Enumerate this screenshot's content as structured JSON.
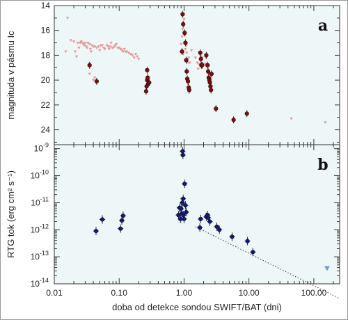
{
  "chart_data": [
    {
      "id": "a",
      "type": "scatter",
      "panel_label": "a",
      "ylabel": "magnituda v pásmu Ic",
      "xscale": "log",
      "yinverted": true,
      "xlim": [
        0.01,
        250
      ],
      "ylim": [
        25.2,
        14.0
      ],
      "yticks": [
        14,
        16,
        18,
        20,
        22,
        24
      ],
      "yticklabels": [
        "14",
        "16",
        "18",
        "20",
        "22",
        "24"
      ],
      "background": "#eef7f7",
      "series": [
        {
          "role": "limits",
          "marker": "triangle-down",
          "color": "#e79a9a",
          "points": [
            [
              0.015,
              17.7
            ],
            [
              0.016,
              15.0
            ],
            [
              0.018,
              16.8
            ],
            [
              0.02,
              16.9
            ],
            [
              0.021,
              17.7
            ],
            [
              0.022,
              18.1
            ],
            [
              0.023,
              17.0
            ],
            [
              0.024,
              17.4
            ],
            [
              0.025,
              17.0
            ],
            [
              0.026,
              16.9
            ],
            [
              0.027,
              17.0
            ],
            [
              0.028,
              17.1
            ],
            [
              0.029,
              17.2
            ],
            [
              0.03,
              17.0
            ],
            [
              0.031,
              17.3
            ],
            [
              0.032,
              17.4
            ],
            [
              0.033,
              17.0
            ],
            [
              0.035,
              17.1
            ],
            [
              0.036,
              17.5
            ],
            [
              0.037,
              17.7
            ],
            [
              0.038,
              17.2
            ],
            [
              0.04,
              17.3
            ],
            [
              0.042,
              17.3
            ],
            [
              0.045,
              17.4
            ],
            [
              0.048,
              17.3
            ],
            [
              0.05,
              17.6
            ],
            [
              0.052,
              17.2
            ],
            [
              0.055,
              17.2
            ],
            [
              0.058,
              17.4
            ],
            [
              0.06,
              17.5
            ],
            [
              0.065,
              17.2
            ],
            [
              0.068,
              17.3
            ],
            [
              0.07,
              17.5
            ],
            [
              0.072,
              17.3
            ],
            [
              0.075,
              17.0
            ],
            [
              0.078,
              17.4
            ],
            [
              0.08,
              17.4
            ],
            [
              0.085,
              17.3
            ],
            [
              0.088,
              17.2
            ],
            [
              0.09,
              17.1
            ],
            [
              0.095,
              17.4
            ],
            [
              0.1,
              17.4
            ],
            [
              0.105,
              17.5
            ],
            [
              0.11,
              17.6
            ],
            [
              0.115,
              17.7
            ],
            [
              0.12,
              17.5
            ],
            [
              0.125,
              17.7
            ],
            [
              0.13,
              17.7
            ],
            [
              0.14,
              17.8
            ],
            [
              0.15,
              17.9
            ],
            [
              0.16,
              18.0
            ],
            [
              0.17,
              18.2
            ],
            [
              0.18,
              17.9
            ],
            [
              0.19,
              18.1
            ],
            [
              0.2,
              18.3
            ],
            [
              0.035,
              19.5
            ],
            [
              0.04,
              20.0
            ],
            [
              0.042,
              19.8
            ],
            [
              0.9,
              17.1
            ],
            [
              0.93,
              16.5
            ],
            [
              0.95,
              15.9
            ],
            [
              0.97,
              17.9
            ],
            [
              1.0,
              15.1
            ],
            [
              1.03,
              16.4
            ],
            [
              1.05,
              17.5
            ],
            [
              1.08,
              17.2
            ],
            [
              1.1,
              17.8
            ],
            [
              1.12,
              18.3
            ],
            [
              1.15,
              18.6
            ],
            [
              1.18,
              18.2
            ],
            [
              1.22,
              18.6
            ],
            [
              1.3,
              17.6
            ],
            [
              1.5,
              18.2
            ],
            [
              1.6,
              18.6
            ],
            [
              1.65,
              19.1
            ],
            [
              1.7,
              18.7
            ],
            [
              1.8,
              18.1
            ],
            [
              1.9,
              18.2
            ],
            [
              2.0,
              18.7
            ],
            [
              2.1,
              18.7
            ],
            [
              2.2,
              18.2
            ],
            [
              2.35,
              18.8
            ],
            [
              2.45,
              19.5
            ],
            [
              2.5,
              19.5
            ],
            [
              2.6,
              19.9
            ],
            [
              2.7,
              20.5
            ],
            [
              45,
              23.1
            ],
            [
              150,
              23.4
            ]
          ]
        },
        {
          "role": "detections",
          "marker": "circle",
          "color": "#7a0f0f",
          "points": [
            [
              0.035,
              18.8
            ],
            [
              0.045,
              20.1
            ],
            [
              0.27,
              19.2
            ],
            [
              0.27,
              20.0
            ],
            [
              0.265,
              20.5
            ],
            [
              0.26,
              20.9
            ],
            [
              0.275,
              19.8
            ],
            [
              0.28,
              20.3
            ],
            [
              0.29,
              20.2
            ],
            [
              0.95,
              14.7
            ],
            [
              0.97,
              15.5
            ],
            [
              1.02,
              16.2
            ],
            [
              1.05,
              17.0
            ],
            [
              1.08,
              18.4
            ],
            [
              1.1,
              19.3
            ],
            [
              1.12,
              19.9
            ],
            [
              0.93,
              17.7
            ],
            [
              1.15,
              20.1
            ],
            [
              1.18,
              20.6
            ],
            [
              1.2,
              20.8
            ],
            [
              1.78,
              17.8
            ],
            [
              1.82,
              18.3
            ],
            [
              1.85,
              18.8
            ],
            [
              1.9,
              18.8
            ],
            [
              2.2,
              18.0
            ],
            [
              2.3,
              18.8
            ],
            [
              2.35,
              19.3
            ],
            [
              2.4,
              19.8
            ],
            [
              2.45,
              20.0
            ],
            [
              2.5,
              20.2
            ],
            [
              2.55,
              20.5
            ],
            [
              2.6,
              20.8
            ],
            [
              2.65,
              19.5
            ],
            [
              3.1,
              22.3
            ],
            [
              5.8,
              23.2
            ],
            [
              9.3,
              22.7
            ]
          ]
        }
      ]
    },
    {
      "id": "b",
      "type": "scatter",
      "panel_label": "b",
      "ylabel": "RTG tok (erg cm² s⁻¹)",
      "xlabel": "doba od detekce sondou SWIFT/BAT (dni)",
      "xscale": "log",
      "yscale": "log",
      "xlim": [
        0.01,
        250
      ],
      "ylim": [
        1e-14,
        1.4e-09
      ],
      "xticks": [
        0.01,
        0.1,
        1,
        10,
        100
      ],
      "xticklabels": [
        "0.01",
        "0.10",
        "1.00",
        "10.00",
        "100.00"
      ],
      "ytick_exponents": [
        -9,
        -10,
        -11,
        -12,
        -13,
        -14
      ],
      "ytick_base": "10",
      "background": "#eef7f7",
      "series": [
        {
          "role": "xray",
          "marker": "circle",
          "color": "#121a78",
          "points": [
            [
              0.044,
              9e-13
            ],
            [
              0.055,
              2.4e-12
            ],
            [
              0.105,
              1.1e-12
            ],
            [
              0.11,
              2.2e-12
            ],
            [
              0.115,
              3.3e-12
            ],
            [
              0.82,
              3.5e-12
            ],
            [
              0.85,
              6.5e-12
            ],
            [
              0.88,
              2.5e-12
            ],
            [
              0.9,
              6e-12
            ],
            [
              0.92,
              4e-12
            ],
            [
              0.94,
              1e-11
            ],
            [
              0.95,
              8e-10
            ],
            [
              0.96,
              5.8e-10
            ],
            [
              0.97,
              1.4e-11
            ],
            [
              0.98,
              3.5e-12
            ],
            [
              1.0,
              2.5e-12
            ],
            [
              1.02,
              5e-11
            ],
            [
              1.05,
              8e-12
            ],
            [
              1.08,
              4.5e-12
            ],
            [
              1.75,
              1.2e-12
            ],
            [
              1.8,
              2.5e-12
            ],
            [
              2.2,
              3e-12
            ],
            [
              2.3,
              3.5e-12
            ],
            [
              2.35,
              2.8e-12
            ],
            [
              2.5,
              2e-12
            ],
            [
              3.2,
              1.3e-12
            ],
            [
              3.5,
              1e-12
            ],
            [
              5.5,
              5.5e-13
            ],
            [
              9.5,
              3.8e-13
            ],
            [
              11.5,
              1.5e-13
            ]
          ]
        },
        {
          "role": "upper-limit",
          "marker": "triangle-down",
          "color": "#7d92e8",
          "points": [
            [
              160,
              3.8e-14
            ]
          ]
        }
      ],
      "fit_line": {
        "style": "dotted",
        "from": [
          1.5,
          1.3e-12
        ],
        "to": [
          240,
          3e-15
        ]
      }
    }
  ]
}
